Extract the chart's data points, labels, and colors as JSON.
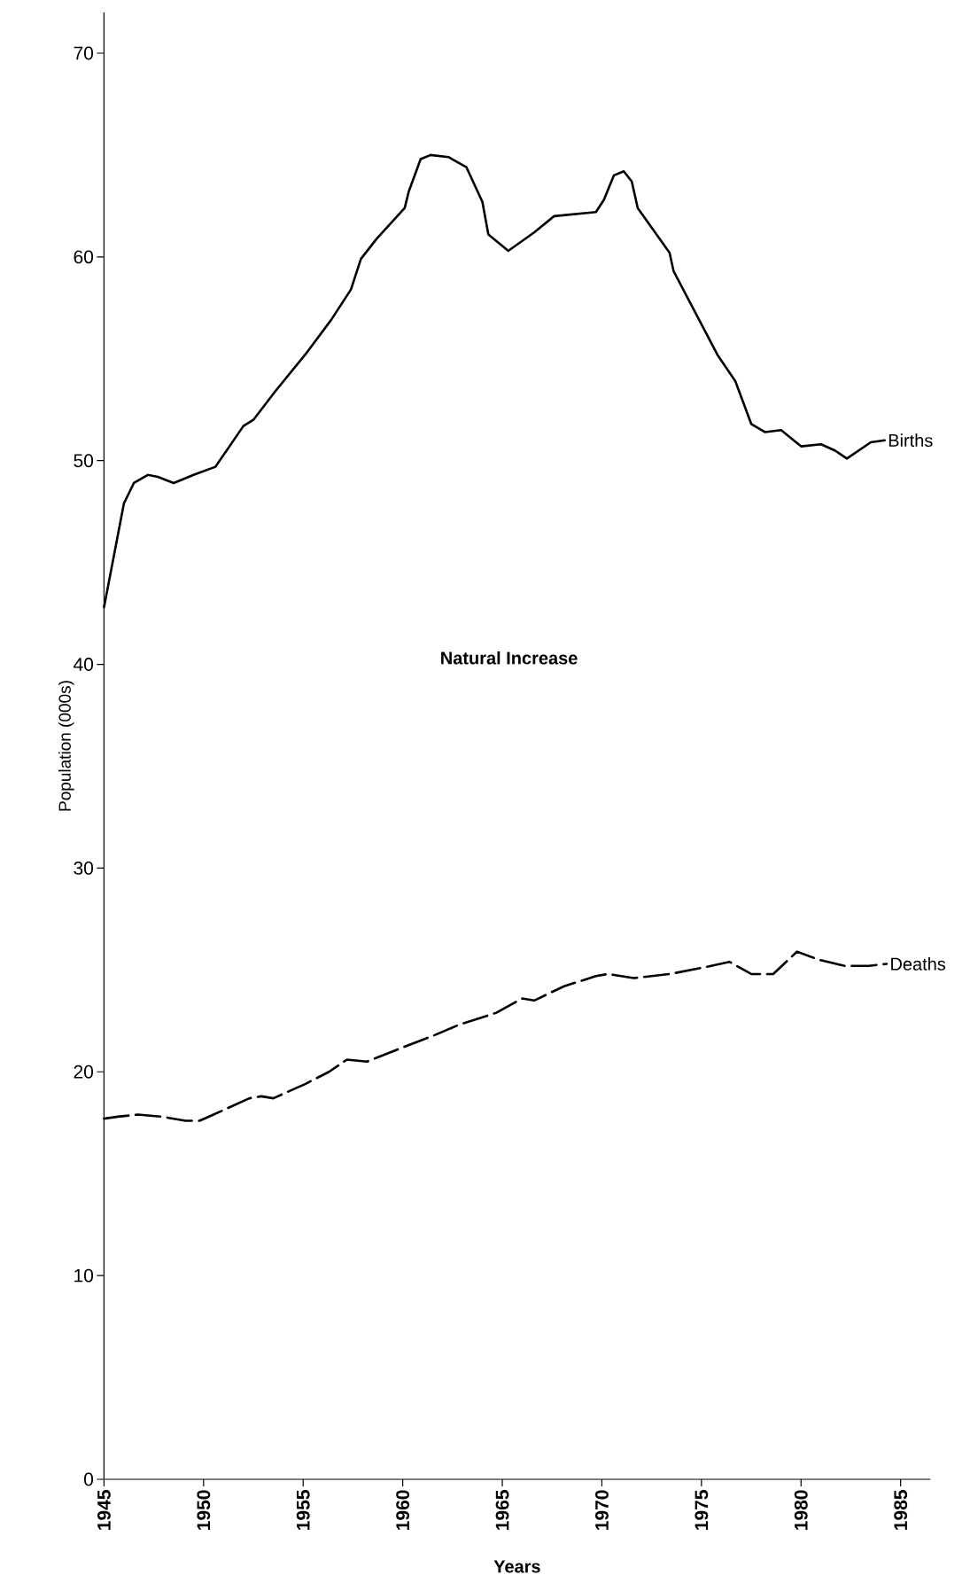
{
  "chart_data": {
    "type": "line",
    "xlabel": "Years",
    "ylabel": "Population (000s)",
    "annotations": [
      "Natural Increase"
    ],
    "xlim": [
      1945,
      1986.5
    ],
    "ylim": [
      0,
      72
    ],
    "xticks": [
      1945,
      1950,
      1955,
      1960,
      1965,
      1970,
      1975,
      1980,
      1985
    ],
    "yticks": [
      0,
      10,
      20,
      30,
      40,
      50,
      60,
      70
    ],
    "series": [
      {
        "name": "Births",
        "color": "#000000",
        "line_style": "solid",
        "x": [
          1945,
          1946.0,
          1946.5,
          1947.2,
          1947.7,
          1948.5,
          1949.5,
          1950.6,
          1952.0,
          1952.5,
          1953.6,
          1955.1,
          1956.4,
          1957.4,
          1957.9,
          1958.7,
          1960.1,
          1960.3,
          1960.9,
          1961.4,
          1962.3,
          1963.2,
          1964.0,
          1964.3,
          1965.3,
          1966.6,
          1967.6,
          1969.7,
          1970.1,
          1970.6,
          1971.1,
          1971.5,
          1971.8,
          1973.4,
          1973.6,
          1975.8,
          1976.7,
          1977.5,
          1978.2,
          1979.0,
          1980.0,
          1981.0,
          1981.7,
          1982.3,
          1983.5,
          1984.2
        ],
        "values": [
          42.8,
          47.9,
          48.9,
          49.3,
          49.2,
          48.9,
          49.3,
          49.7,
          51.7,
          52.0,
          53.4,
          55.2,
          56.9,
          58.4,
          59.9,
          60.9,
          62.4,
          63.2,
          64.8,
          65.0,
          64.9,
          64.4,
          62.7,
          61.1,
          60.3,
          61.2,
          62.0,
          62.2,
          62.8,
          64.0,
          64.2,
          63.7,
          62.4,
          60.2,
          59.3,
          55.2,
          53.9,
          51.8,
          51.4,
          51.5,
          50.7,
          50.8,
          50.5,
          50.1,
          50.9,
          51.0
        ]
      },
      {
        "name": "Deaths",
        "color": "#000000",
        "line_style": "dashed",
        "x": [
          1945,
          1945.7,
          1946.7,
          1947.9,
          1949.1,
          1949.8,
          1950.5,
          1952.3,
          1952.9,
          1953.5,
          1955.1,
          1956.3,
          1957.2,
          1958.2,
          1960.0,
          1961.6,
          1962.8,
          1964.7,
          1966.0,
          1966.6,
          1968.1,
          1969.7,
          1970.3,
          1971.6,
          1973.4,
          1975.0,
          1976.4,
          1977.5,
          1978.6,
          1979.8,
          1980.9,
          1982.2,
          1983.4,
          1984.3
        ],
        "values": [
          17.7,
          17.8,
          17.9,
          17.8,
          17.6,
          17.6,
          17.9,
          18.7,
          18.8,
          18.7,
          19.4,
          20.0,
          20.6,
          20.5,
          21.2,
          21.8,
          22.3,
          22.9,
          23.6,
          23.5,
          24.2,
          24.7,
          24.8,
          24.6,
          24.8,
          25.1,
          25.4,
          24.8,
          24.8,
          25.9,
          25.5,
          25.2,
          25.2,
          25.3
        ]
      }
    ]
  }
}
